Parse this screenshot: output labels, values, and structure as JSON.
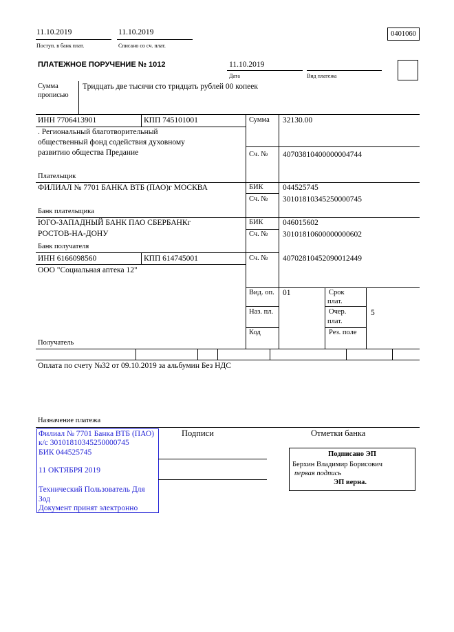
{
  "header": {
    "received_date": "11.10.2019",
    "received_label": "Поступ. в банк плат.",
    "debited_date": "11.10.2019",
    "debited_label": "Списано со сч. плат.",
    "form_code": "0401060"
  },
  "title": "ПЛАТЕЖНОЕ ПОРУЧЕНИЕ № 1012",
  "date": "11.10.2019",
  "date_label": "Дата",
  "payment_type_label": "Вид платежа",
  "amount_words_label": [
    "Сумма",
    "прописью"
  ],
  "amount_words": "Тридцать две тысячи сто тридцать рублей 00 копеек",
  "payer": {
    "inn": "ИНН 7706413901",
    "kpp": "КПП 745101001",
    "name_lines": [
      ". Региональный благотворительный",
      "общественный фонд содействия духовному",
      "развитию общества Предание"
    ],
    "label": "Плательщик",
    "amount_label": "Сумма",
    "amount": "32130.00",
    "account_label": "Сч. №",
    "account": "40703810400000004744"
  },
  "payer_bank": {
    "name": "ФИЛИАЛ № 7701 БАНКА ВТБ (ПАО)г МОСКВА",
    "label": "Банк плательщика",
    "bik_label": "БИК",
    "bik": "044525745",
    "account_label": "Сч. №",
    "account": "30101810345250000745"
  },
  "payee_bank": {
    "name_lines": [
      "ЮГО-ЗАПАДНЫЙ БАНК ПАО СБЕРБАНКг",
      "РОСТОВ-НА-ДОНУ"
    ],
    "label": "Банк получателя",
    "bik_label": "БИК",
    "bik": "046015602",
    "account_label": "Сч. №",
    "account": "30101810600000000602"
  },
  "payee": {
    "inn": "ИНН 6166098560",
    "kpp": "КПП 614745001",
    "name": "ООО \"Социальная аптека 12\"",
    "label": "Получатель",
    "account_label": "Сч. №",
    "account": "40702810452090012449"
  },
  "codes": {
    "op_type_label": "Вид. оп.",
    "op_type": "01",
    "purpose_label": "Наз. пл.",
    "code_label": "Код",
    "term_label": [
      "Срок",
      "плат."
    ],
    "priority_label": [
      "Очер.",
      "плат."
    ],
    "priority": "5",
    "reserve_label": "Рез. поле"
  },
  "purpose": "Оплата по счету №32 от 09.10.2019 за альбумин Без НДС",
  "purpose_label": "Назначение платежа",
  "signatures_label": "Подписи",
  "bank_marks_label": "Отметки банка",
  "bank_stamp": {
    "lines": [
      "Филиал № 7701 Банка ВТБ (ПАО)",
      "к/с 30101810345250000745",
      "БИК 044525745"
    ],
    "date": "11 ОКТЯБРЯ 2019",
    "user_lines": [
      "Технический Пользователь Для",
      "Зод"
    ],
    "status": "Документ принят электронно",
    "color": "#2323d6"
  },
  "e_signature": {
    "title": "Подписано ЭП",
    "signer": "Берхин Владимир Борисович",
    "role": "первая подпись",
    "verdict": "ЭП верна."
  }
}
